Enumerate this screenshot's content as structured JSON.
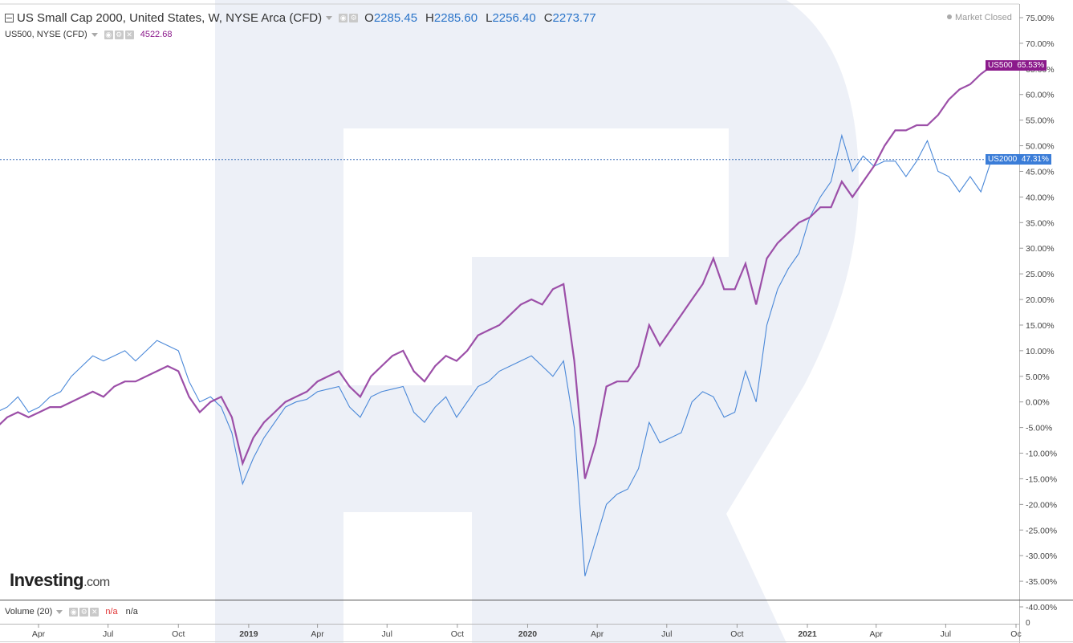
{
  "header": {
    "title": "US Small Cap 2000, United States, W, NYSE Arca (CFD)",
    "open_label": "O",
    "open": "2285.45",
    "high_label": "H",
    "high": "2285.60",
    "low_label": "L",
    "low": "2256.40",
    "close_label": "C",
    "close": "2273.77"
  },
  "overlay": {
    "title": "US500, NYSE (CFD)",
    "value": "4522.68"
  },
  "status": "Market Closed",
  "volume": {
    "label": "Volume (20)",
    "value1": "n/a",
    "value2": "n/a"
  },
  "logo": {
    "brand": "Investing",
    "suffix": ".com"
  },
  "colors": {
    "us2000": "#4a88d8",
    "us500": "#9c4fa8",
    "us500_tag": "#8b1a8b",
    "us2000_tag": "#3b7dd8"
  },
  "icons": {
    "collapse": "square-minus-icon",
    "settings": "gear-icon",
    "close": "close-icon",
    "eye": "eye-icon"
  },
  "chart_data": {
    "type": "line",
    "yticks": [
      "75.00%",
      "70.00%",
      "65.00%",
      "60.00%",
      "55.00%",
      "50.00%",
      "45.00%",
      "40.00%",
      "35.00%",
      "30.00%",
      "25.00%",
      "20.00%",
      "15.00%",
      "10.00%",
      "5.00%",
      "0.00%",
      "-5.00%",
      "-10.00%",
      "-15.00%",
      "-20.00%",
      "-25.00%",
      "-30.00%",
      "-35.00%",
      "-40.00%"
    ],
    "ylim": [
      -40,
      75
    ],
    "xticks": [
      {
        "label": "Apr",
        "date": "2018-04-01",
        "bold": false
      },
      {
        "label": "Jul",
        "date": "2018-07-01",
        "bold": false
      },
      {
        "label": "Oct",
        "date": "2018-10-01",
        "bold": false
      },
      {
        "label": "2019",
        "date": "2019-01-01",
        "bold": true
      },
      {
        "label": "Apr",
        "date": "2019-04-01",
        "bold": false
      },
      {
        "label": "Jul",
        "date": "2019-07-01",
        "bold": false
      },
      {
        "label": "Oct",
        "date": "2019-10-01",
        "bold": false
      },
      {
        "label": "2020",
        "date": "2020-01-01",
        "bold": true
      },
      {
        "label": "Apr",
        "date": "2020-04-01",
        "bold": false
      },
      {
        "label": "Jul",
        "date": "2020-07-01",
        "bold": false
      },
      {
        "label": "Oct",
        "date": "2020-10-01",
        "bold": false
      },
      {
        "label": "2021",
        "date": "2021-01-01",
        "bold": true
      },
      {
        "label": "Apr",
        "date": "2021-04-01",
        "bold": false
      },
      {
        "label": "Jul",
        "date": "2021-07-01",
        "bold": false
      },
      {
        "label": "Oc",
        "date": "2021-10-01",
        "bold": false
      }
    ],
    "volume_ytick": "0",
    "series": [
      {
        "name": "US2000",
        "last_label": "47.31%",
        "last": 47.31,
        "points": [
          [
            "2018-01-01",
            0
          ],
          [
            "2018-01-22",
            3
          ],
          [
            "2018-02-05",
            -2
          ],
          [
            "2018-02-19",
            -1
          ],
          [
            "2018-03-05",
            1
          ],
          [
            "2018-03-19",
            -2
          ],
          [
            "2018-04-02",
            -1
          ],
          [
            "2018-04-16",
            1
          ],
          [
            "2018-04-30",
            2
          ],
          [
            "2018-05-14",
            5
          ],
          [
            "2018-05-28",
            7
          ],
          [
            "2018-06-11",
            9
          ],
          [
            "2018-06-25",
            8
          ],
          [
            "2018-07-09",
            9
          ],
          [
            "2018-07-23",
            10
          ],
          [
            "2018-08-06",
            8
          ],
          [
            "2018-08-20",
            10
          ],
          [
            "2018-09-03",
            12
          ],
          [
            "2018-09-17",
            11
          ],
          [
            "2018-10-01",
            10
          ],
          [
            "2018-10-15",
            4
          ],
          [
            "2018-10-29",
            0
          ],
          [
            "2018-11-12",
            1
          ],
          [
            "2018-11-26",
            -1
          ],
          [
            "2018-12-10",
            -6
          ],
          [
            "2018-12-24",
            -16
          ],
          [
            "2019-01-07",
            -11
          ],
          [
            "2019-01-21",
            -7
          ],
          [
            "2019-02-04",
            -4
          ],
          [
            "2019-02-18",
            -1
          ],
          [
            "2019-03-04",
            0
          ],
          [
            "2019-03-18",
            0.5
          ],
          [
            "2019-04-01",
            2
          ],
          [
            "2019-04-15",
            2.5
          ],
          [
            "2019-04-29",
            3
          ],
          [
            "2019-05-13",
            -1
          ],
          [
            "2019-05-27",
            -3
          ],
          [
            "2019-06-10",
            1
          ],
          [
            "2019-06-24",
            2
          ],
          [
            "2019-07-08",
            2.5
          ],
          [
            "2019-07-22",
            3
          ],
          [
            "2019-08-05",
            -2
          ],
          [
            "2019-08-19",
            -4
          ],
          [
            "2019-09-02",
            -1
          ],
          [
            "2019-09-16",
            1
          ],
          [
            "2019-09-30",
            -3
          ],
          [
            "2019-10-14",
            0
          ],
          [
            "2019-10-28",
            3
          ],
          [
            "2019-11-11",
            4
          ],
          [
            "2019-11-25",
            6
          ],
          [
            "2019-12-09",
            7
          ],
          [
            "2019-12-23",
            8
          ],
          [
            "2020-01-06",
            9
          ],
          [
            "2020-01-20",
            7
          ],
          [
            "2020-02-03",
            5
          ],
          [
            "2020-02-17",
            8
          ],
          [
            "2020-03-02",
            -5
          ],
          [
            "2020-03-16",
            -34
          ],
          [
            "2020-03-30",
            -27
          ],
          [
            "2020-04-13",
            -20
          ],
          [
            "2020-04-27",
            -18
          ],
          [
            "2020-05-11",
            -17
          ],
          [
            "2020-05-25",
            -13
          ],
          [
            "2020-06-08",
            -4
          ],
          [
            "2020-06-22",
            -8
          ],
          [
            "2020-07-06",
            -7
          ],
          [
            "2020-07-20",
            -6
          ],
          [
            "2020-08-03",
            0
          ],
          [
            "2020-08-17",
            2
          ],
          [
            "2020-08-31",
            1
          ],
          [
            "2020-09-14",
            -3
          ],
          [
            "2020-09-28",
            -2
          ],
          [
            "2020-10-12",
            6
          ],
          [
            "2020-10-26",
            0
          ],
          [
            "2020-11-09",
            15
          ],
          [
            "2020-11-23",
            22
          ],
          [
            "2020-12-07",
            26
          ],
          [
            "2020-12-21",
            29
          ],
          [
            "2021-01-04",
            36
          ],
          [
            "2021-01-18",
            40
          ],
          [
            "2021-02-01",
            43
          ],
          [
            "2021-02-15",
            52
          ],
          [
            "2021-03-01",
            45
          ],
          [
            "2021-03-15",
            48
          ],
          [
            "2021-03-29",
            46
          ],
          [
            "2021-04-12",
            47
          ],
          [
            "2021-04-26",
            47
          ],
          [
            "2021-05-10",
            44
          ],
          [
            "2021-05-24",
            47
          ],
          [
            "2021-06-07",
            51
          ],
          [
            "2021-06-21",
            45
          ],
          [
            "2021-07-05",
            44
          ],
          [
            "2021-07-19",
            41
          ],
          [
            "2021-08-02",
            44
          ],
          [
            "2021-08-16",
            41
          ],
          [
            "2021-08-30",
            47.31
          ]
        ]
      },
      {
        "name": "US500",
        "last_label": "65.53%",
        "last": 65.53,
        "points": [
          [
            "2018-01-01",
            0
          ],
          [
            "2018-01-22",
            2
          ],
          [
            "2018-02-05",
            -5
          ],
          [
            "2018-02-19",
            -3
          ],
          [
            "2018-03-05",
            -2
          ],
          [
            "2018-03-19",
            -3
          ],
          [
            "2018-04-02",
            -2
          ],
          [
            "2018-04-16",
            -1
          ],
          [
            "2018-04-30",
            -1
          ],
          [
            "2018-05-14",
            0
          ],
          [
            "2018-05-28",
            1
          ],
          [
            "2018-06-11",
            2
          ],
          [
            "2018-06-25",
            1
          ],
          [
            "2018-07-09",
            3
          ],
          [
            "2018-07-23",
            4
          ],
          [
            "2018-08-06",
            4
          ],
          [
            "2018-08-20",
            5
          ],
          [
            "2018-09-03",
            6
          ],
          [
            "2018-09-17",
            7
          ],
          [
            "2018-10-01",
            6
          ],
          [
            "2018-10-15",
            1
          ],
          [
            "2018-10-29",
            -2
          ],
          [
            "2018-11-12",
            0
          ],
          [
            "2018-11-26",
            1
          ],
          [
            "2018-12-10",
            -3
          ],
          [
            "2018-12-24",
            -12
          ],
          [
            "2019-01-07",
            -7
          ],
          [
            "2019-01-21",
            -4
          ],
          [
            "2019-02-04",
            -2
          ],
          [
            "2019-02-18",
            0
          ],
          [
            "2019-03-04",
            1
          ],
          [
            "2019-03-18",
            2
          ],
          [
            "2019-04-01",
            4
          ],
          [
            "2019-04-15",
            5
          ],
          [
            "2019-04-29",
            6
          ],
          [
            "2019-05-13",
            3
          ],
          [
            "2019-05-27",
            1
          ],
          [
            "2019-06-10",
            5
          ],
          [
            "2019-06-24",
            7
          ],
          [
            "2019-07-08",
            9
          ],
          [
            "2019-07-22",
            10
          ],
          [
            "2019-08-05",
            6
          ],
          [
            "2019-08-19",
            4
          ],
          [
            "2019-09-02",
            7
          ],
          [
            "2019-09-16",
            9
          ],
          [
            "2019-09-30",
            8
          ],
          [
            "2019-10-14",
            10
          ],
          [
            "2019-10-28",
            13
          ],
          [
            "2019-11-11",
            14
          ],
          [
            "2019-11-25",
            15
          ],
          [
            "2019-12-09",
            17
          ],
          [
            "2019-12-23",
            19
          ],
          [
            "2020-01-06",
            20
          ],
          [
            "2020-01-20",
            19
          ],
          [
            "2020-02-03",
            22
          ],
          [
            "2020-02-17",
            23
          ],
          [
            "2020-03-02",
            8
          ],
          [
            "2020-03-16",
            -15
          ],
          [
            "2020-03-30",
            -8
          ],
          [
            "2020-04-13",
            3
          ],
          [
            "2020-04-27",
            4
          ],
          [
            "2020-05-11",
            4
          ],
          [
            "2020-05-25",
            7
          ],
          [
            "2020-06-08",
            15
          ],
          [
            "2020-06-22",
            11
          ],
          [
            "2020-07-06",
            14
          ],
          [
            "2020-07-20",
            17
          ],
          [
            "2020-08-03",
            20
          ],
          [
            "2020-08-17",
            23
          ],
          [
            "2020-08-31",
            28
          ],
          [
            "2020-09-14",
            22
          ],
          [
            "2020-09-28",
            22
          ],
          [
            "2020-10-12",
            27
          ],
          [
            "2020-10-26",
            19
          ],
          [
            "2020-11-09",
            28
          ],
          [
            "2020-11-23",
            31
          ],
          [
            "2020-12-07",
            33
          ],
          [
            "2020-12-21",
            35
          ],
          [
            "2021-01-04",
            36
          ],
          [
            "2021-01-18",
            38
          ],
          [
            "2021-02-01",
            38
          ],
          [
            "2021-02-15",
            43
          ],
          [
            "2021-03-01",
            40
          ],
          [
            "2021-03-15",
            43
          ],
          [
            "2021-03-29",
            46
          ],
          [
            "2021-04-12",
            50
          ],
          [
            "2021-04-26",
            53
          ],
          [
            "2021-05-10",
            53
          ],
          [
            "2021-05-24",
            54
          ],
          [
            "2021-06-07",
            54
          ],
          [
            "2021-06-21",
            56
          ],
          [
            "2021-07-05",
            59
          ],
          [
            "2021-07-19",
            61
          ],
          [
            "2021-08-02",
            62
          ],
          [
            "2021-08-16",
            64
          ],
          [
            "2021-08-30",
            65.53
          ]
        ]
      }
    ]
  }
}
